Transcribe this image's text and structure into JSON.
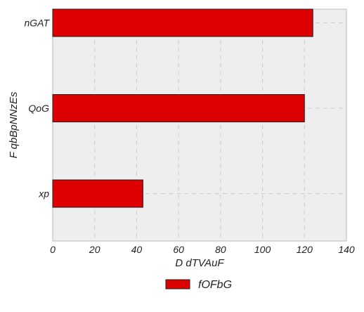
{
  "chart_data": {
    "type": "bar",
    "orientation": "horizontal",
    "categories": [
      "nGAT",
      "QoG",
      "xp"
    ],
    "series": [
      {
        "name": "fOFbG",
        "values": [
          124,
          120,
          43
        ]
      }
    ],
    "xlabel": "D  dTVAuF",
    "ylabel": "F qbBpNNzEs",
    "xlim": [
      0,
      140
    ],
    "xticks": [
      0,
      20,
      40,
      60,
      80,
      100,
      120,
      140
    ],
    "grid": true,
    "legend_position": "bottom-center",
    "colors": {
      "bar": "#dd0000",
      "bar_edge": "#222222",
      "plot_bg": "#eeeeee",
      "grid": "#cccccc"
    }
  }
}
